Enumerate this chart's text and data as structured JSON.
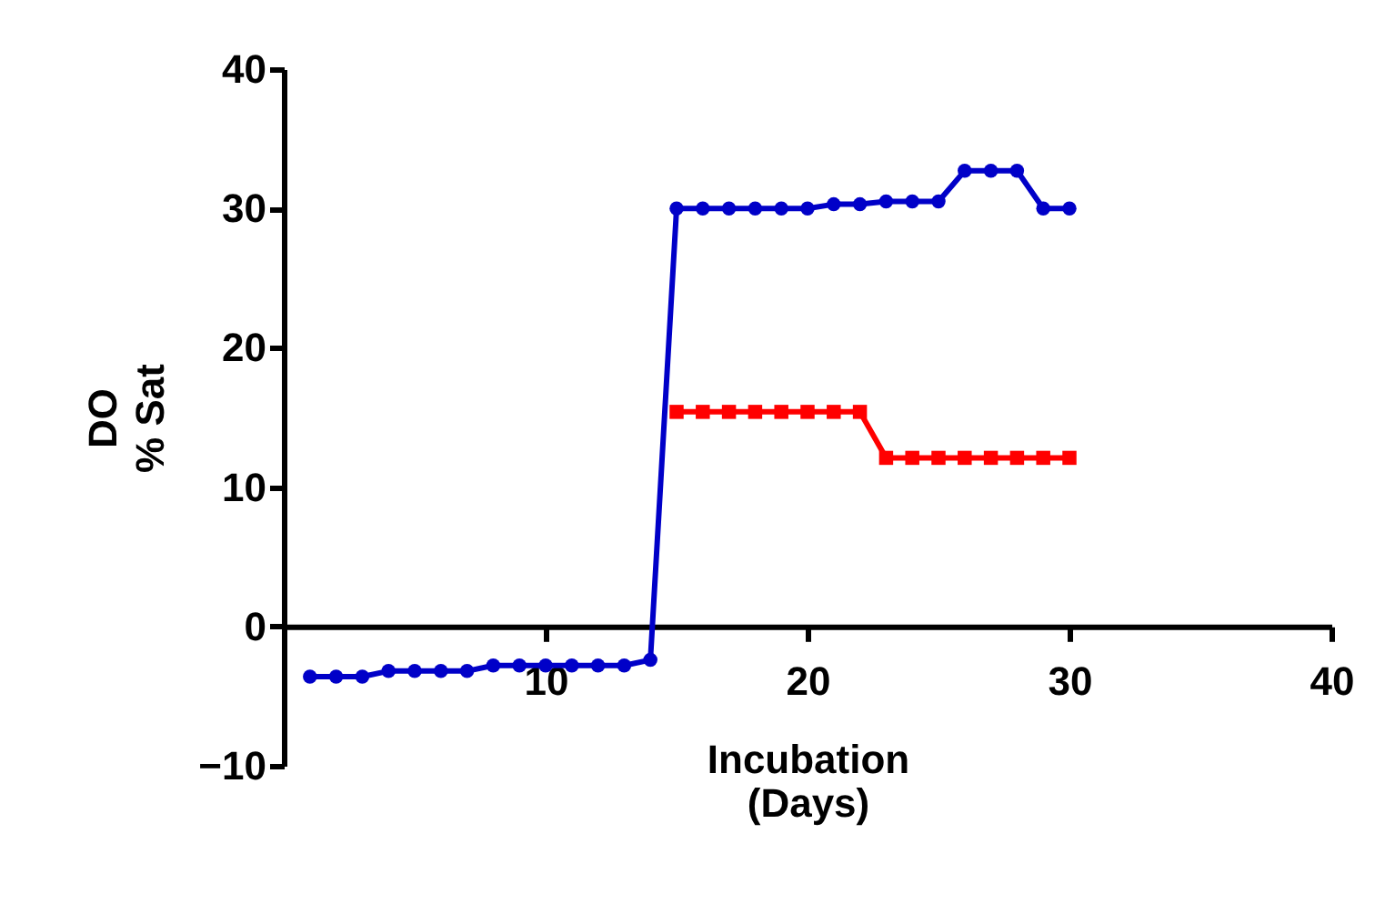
{
  "chart_data": {
    "type": "line",
    "xlabel": "Incubation\n(Days)",
    "ylabel": "DO\n% Sat",
    "xlim": [
      0,
      40
    ],
    "xticks": [
      10,
      20,
      30,
      40
    ],
    "ylim": [
      -10,
      40
    ],
    "yticks": [
      -10,
      0,
      10,
      20,
      30,
      40
    ],
    "grid": false,
    "line_style": "solid",
    "series": [
      {
        "color": "#0000c8",
        "marker": "circle",
        "x": [
          1,
          2,
          3,
          4,
          5,
          6,
          7,
          8,
          9,
          10,
          11,
          12,
          13,
          14,
          15,
          16,
          17,
          18,
          19,
          20,
          21,
          22,
          23,
          24,
          25,
          26,
          27,
          28,
          29,
          30
        ],
        "values": [
          -3.6,
          -3.6,
          -3.6,
          -3.2,
          -3.2,
          -3.2,
          -3.2,
          -2.8,
          -2.8,
          -2.8,
          -2.8,
          -2.8,
          -2.8,
          -2.4,
          30.0,
          30.0,
          30.0,
          30.0,
          30.0,
          30.0,
          30.3,
          30.3,
          30.5,
          30.5,
          30.5,
          32.7,
          32.7,
          32.7,
          30.0,
          30.0
        ]
      },
      {
        "color": "#ff0000",
        "marker": "square",
        "x": [
          15,
          16,
          17,
          18,
          19,
          20,
          21,
          22,
          23,
          24,
          25,
          26,
          27,
          28,
          29,
          30
        ],
        "values": [
          15.4,
          15.4,
          15.4,
          15.4,
          15.4,
          15.4,
          15.4,
          15.4,
          12.1,
          12.1,
          12.1,
          12.1,
          12.1,
          12.1,
          12.1,
          12.1
        ]
      }
    ]
  }
}
